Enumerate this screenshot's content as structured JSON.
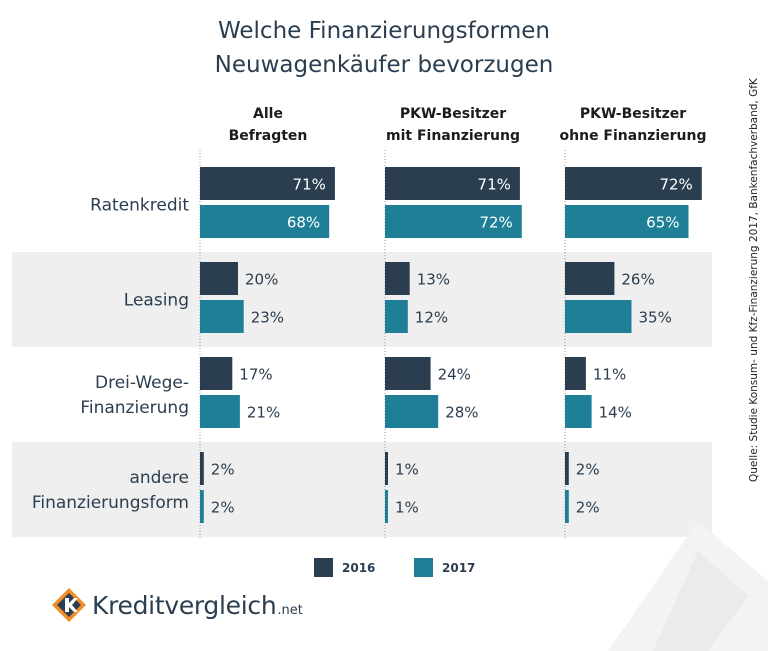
{
  "title_lines": [
    "Welche Finanzierungsformen",
    "Neuwagenkäufer bevorzugen"
  ],
  "source": "Quelle: Studie Konsum- und Kfz-Finanzierung 2017, Bankenfachverband, GfK",
  "logo": {
    "name": "Kreditvergleich",
    "tld": ".net"
  },
  "colors": {
    "2016": "#2b3e50",
    "2017": "#1f7f96",
    "band": "#efefef",
    "text": "#2b3e50"
  },
  "legend": [
    {
      "label": "2016",
      "color": "#2b3e50"
    },
    {
      "label": "2017",
      "color": "#1f7f96"
    }
  ],
  "chart_data": {
    "type": "bar",
    "orientation": "horizontal",
    "categories": [
      [
        "Ratenkredit"
      ],
      [
        "Leasing"
      ],
      [
        "Drei-Wege-",
        "Finanzierung"
      ],
      [
        "andere",
        "Finanzierungsform"
      ]
    ],
    "panels": [
      {
        "title": [
          "Alle",
          "Befragten"
        ],
        "series": [
          {
            "name": "2016",
            "values": [
              71,
              20,
              17,
              2
            ]
          },
          {
            "name": "2017",
            "values": [
              68,
              23,
              21,
              2
            ]
          }
        ]
      },
      {
        "title": [
          "PKW-Besitzer",
          "mit Finanzierung"
        ],
        "series": [
          {
            "name": "2016",
            "values": [
              71,
              13,
              24,
              1
            ]
          },
          {
            "name": "2017",
            "values": [
              72,
              12,
              28,
              1
            ]
          }
        ]
      },
      {
        "title": [
          "PKW-Besitzer",
          "ohne Finanzierung"
        ],
        "series": [
          {
            "name": "2016",
            "values": [
              72,
              26,
              11,
              2
            ]
          },
          {
            "name": "2017",
            "values": [
              65,
              35,
              14,
              2
            ]
          }
        ]
      }
    ],
    "value_suffix": "%",
    "legend_position": "bottom-center"
  }
}
